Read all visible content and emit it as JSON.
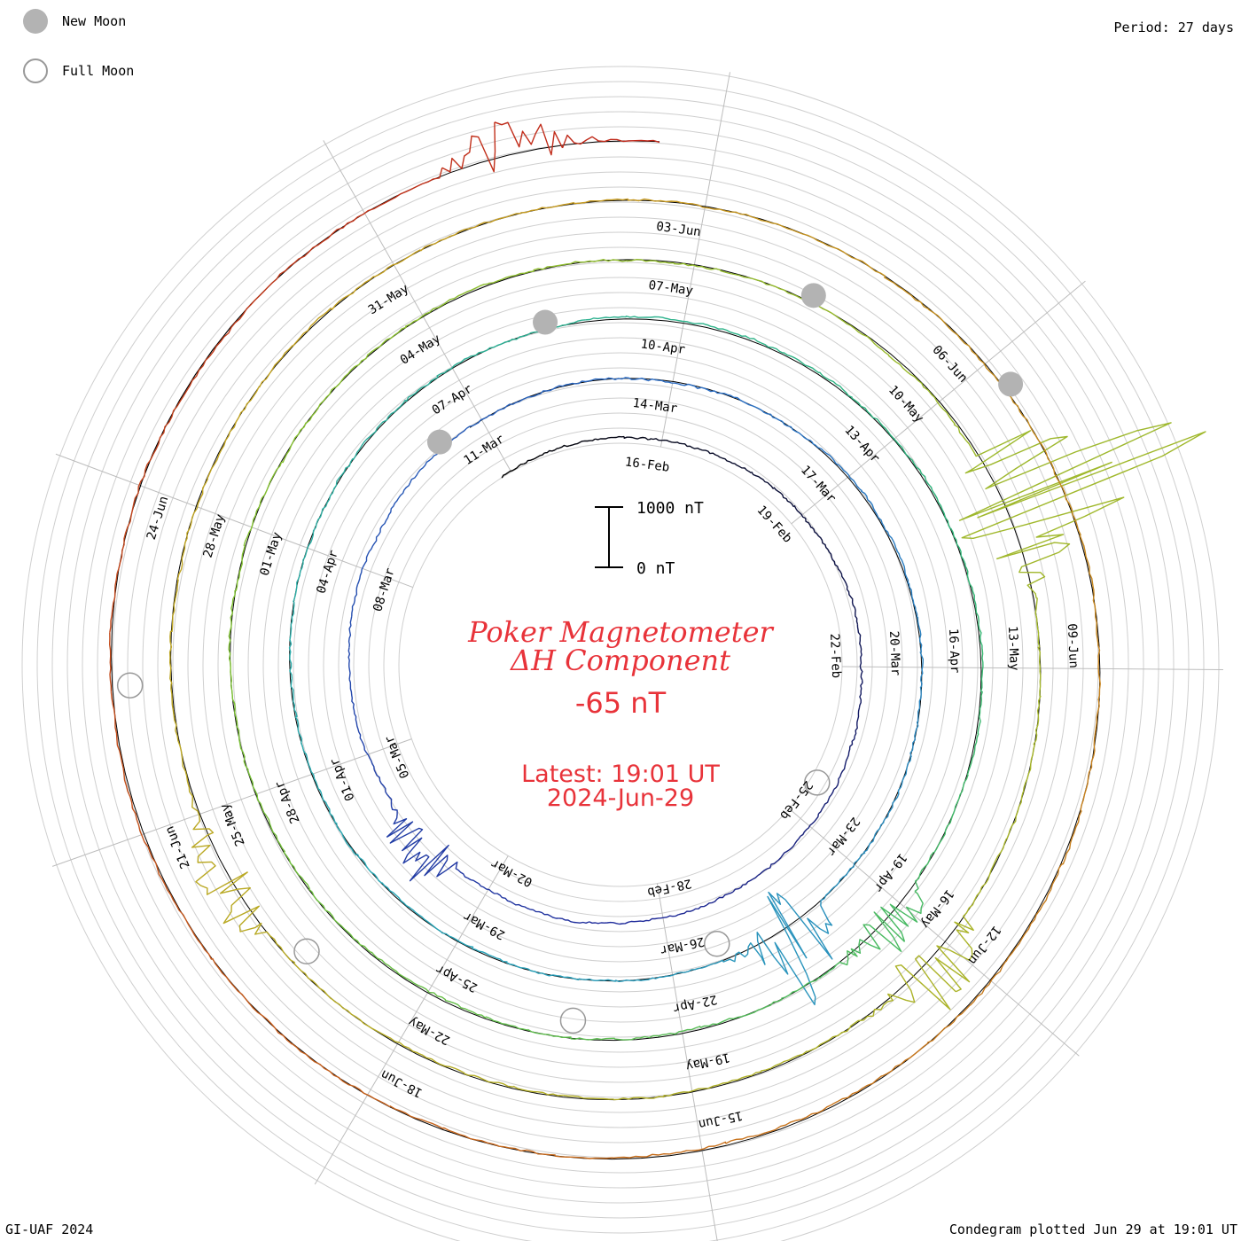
{
  "legend": {
    "new_moon": {
      "label": "New Moon",
      "color": "#b3b3b3"
    },
    "full_moon": {
      "label": "Full Moon",
      "color": "#999999"
    }
  },
  "header": {
    "period": "Period: 27 days"
  },
  "footer": {
    "credit": "GI-UAF 2024",
    "plotted": "Condegram plotted Jun 29 at 19:01 UT"
  },
  "center": {
    "title_line1": "Poker Magnetometer",
    "title_line2": "ΔH Component",
    "current_value": "-65 nT",
    "latest_line1": "Latest: 19:01 UT",
    "latest_line2": "2024-Jun-29"
  },
  "scale_bar": {
    "top_label": "1000 nT",
    "bottom_label": "0 nT",
    "value_nT": 1000
  },
  "chart_data": {
    "type": "line",
    "subtype": "spiral condegram",
    "period_days": 27,
    "start_date": "2024-02-13",
    "end_date": "2024-06-29",
    "units": "nT",
    "grid": true,
    "rotations": [
      {
        "start": "2024-02-13",
        "color": "#000000"
      },
      {
        "start": "2024-03-11",
        "color": "#1f2a9a"
      },
      {
        "start": "2024-04-07",
        "color": "#29a8b8"
      },
      {
        "start": "2024-05-04",
        "color": "#7ec230"
      },
      {
        "start": "2024-05-31",
        "color": "#b5a520"
      },
      {
        "start": "2024-06-24",
        "color": "#c0261a"
      }
    ],
    "colors": [
      "#000000",
      "#1f2a9a",
      "#2b6fc4",
      "#29a8b8",
      "#2fb67a",
      "#7ec230",
      "#a9b52a",
      "#c4a11f",
      "#c8731c",
      "#c0261a"
    ],
    "date_labels": [
      "16-Feb",
      "19-Feb",
      "22-Feb",
      "25-Feb",
      "28-Feb",
      "02-Mar",
      "05-Mar",
      "08-Mar",
      "11-Mar",
      "14-Mar",
      "17-Mar",
      "20-Mar",
      "23-Mar",
      "26-Mar",
      "29-Mar",
      "01-Apr",
      "04-Apr",
      "07-Apr",
      "10-Apr",
      "13-Apr",
      "16-Apr",
      "19-Apr",
      "22-Apr",
      "25-Apr",
      "28-Apr",
      "01-May",
      "04-May",
      "07-May",
      "10-May",
      "13-May",
      "16-May",
      "19-May",
      "22-May",
      "25-May",
      "28-May",
      "31-May",
      "03-Jun",
      "06-Jun",
      "09-Jun",
      "12-Jun",
      "15-Jun",
      "18-Jun",
      "21-Jun",
      "24-Jun"
    ],
    "new_moons": [
      "2024-03-10",
      "2024-04-08",
      "2024-05-08",
      "2024-06-06"
    ],
    "full_moons": [
      "2024-02-24",
      "2024-03-25",
      "2024-04-23",
      "2024-05-23",
      "2024-06-22"
    ],
    "disturbances": [
      {
        "date": "2024-03-03",
        "peak_nT": 700
      },
      {
        "date": "2024-03-24",
        "peak_nT": 1150
      },
      {
        "date": "2024-04-19",
        "peak_nT": 500
      },
      {
        "date": "2024-05-11",
        "peak_nT": 2600
      },
      {
        "date": "2024-05-16",
        "peak_nT": 700
      },
      {
        "date": "2024-05-24",
        "peak_nT": 600
      },
      {
        "date": "2024-06-28",
        "peak_nT": 450
      }
    ],
    "latest_value_nT": -65
  }
}
